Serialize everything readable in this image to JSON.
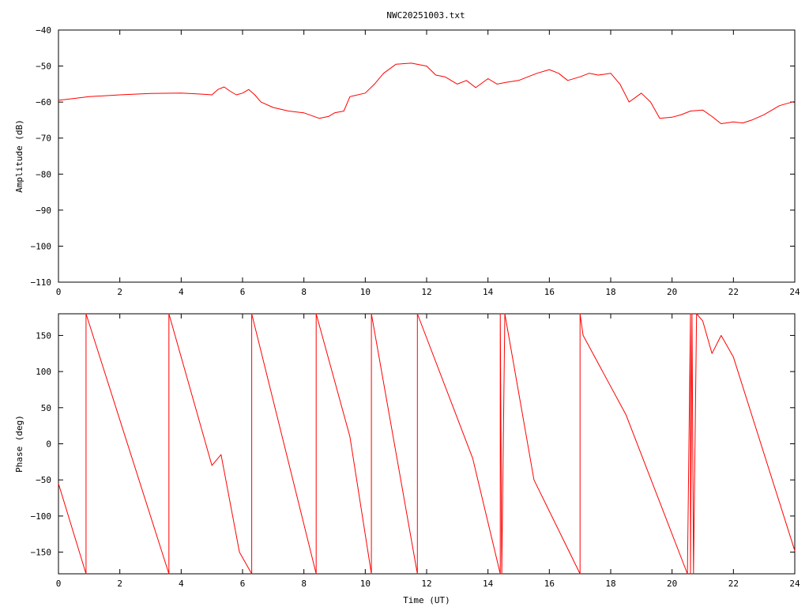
{
  "title": "NWC20251003.txt",
  "colors": {
    "series": "#ff0000",
    "axes": "#000000",
    "background": "#ffffff"
  },
  "chart_data": [
    {
      "type": "line",
      "title": "NWC20251003.txt",
      "xlabel": "",
      "ylabel": "Amplitude (dB)",
      "xlim": [
        0,
        24
      ],
      "ylim": [
        -110,
        -40
      ],
      "xticks": [
        "0",
        "2",
        "4",
        "6",
        "8",
        "10",
        "12",
        "14",
        "16",
        "18",
        "20",
        "22",
        "24"
      ],
      "yticks": [
        "-40",
        "-50",
        "-60",
        "-70",
        "-80",
        "-90",
        "-100",
        "-110"
      ],
      "grid": false,
      "series": [
        {
          "x": [
            0,
            0.5,
            1,
            2,
            3,
            4,
            4.5,
            5,
            5.2,
            5.4,
            5.6,
            5.8,
            6.0,
            6.2,
            6.4,
            6.6,
            7,
            7.5,
            8,
            8.5,
            8.8,
            9,
            9.3,
            9.5,
            9.6,
            10,
            10.3,
            10.6,
            11,
            11.5,
            12,
            12.3,
            12.6,
            13,
            13.3,
            13.6,
            14,
            14.3,
            14.6,
            15,
            15.3,
            15.6,
            16,
            16.3,
            16.6,
            17,
            17.3,
            17.6,
            18,
            18.3,
            18.6,
            19,
            19.3,
            19.6,
            20,
            20.3,
            20.6,
            21,
            21.3,
            21.6,
            22,
            22.3,
            22.6,
            23,
            23.5,
            24
          ],
          "y": [
            -59.5,
            -59,
            -58.5,
            -58,
            -57.6,
            -57.5,
            -57.7,
            -58,
            -56.5,
            -55.8,
            -57,
            -58,
            -57.5,
            -56.5,
            -58,
            -60,
            -61.5,
            -62.5,
            -63,
            -64.5,
            -64,
            -63,
            -62.5,
            -58.5,
            -58.3,
            -57.5,
            -55,
            -52,
            -49.5,
            -49.2,
            -50,
            -52.5,
            -53,
            -55,
            -54,
            -56,
            -53.5,
            -55,
            -54.5,
            -54,
            -53,
            -52,
            -51,
            -52,
            -54,
            -53,
            -52,
            -52.5,
            -52,
            -55,
            -60,
            -57.5,
            -60,
            -64.5,
            -64.2,
            -63.5,
            -62.5,
            -62.2,
            -64,
            -66,
            -65.5,
            -65.8,
            -65,
            -63.5,
            -61,
            -59.8
          ]
        }
      ]
    },
    {
      "type": "line",
      "title": "",
      "xlabel": "Time (UT)",
      "ylabel": "Phase (deg)",
      "xlim": [
        0,
        24
      ],
      "ylim": [
        -180,
        180
      ],
      "xticks": [
        "0",
        "2",
        "4",
        "6",
        "8",
        "10",
        "12",
        "14",
        "16",
        "18",
        "20",
        "22",
        "24"
      ],
      "yticks": [
        "150",
        "100",
        "50",
        "0",
        "-50",
        "-100",
        "-150"
      ],
      "ytick_values": [
        150,
        100,
        50,
        0,
        -50,
        -100,
        -150
      ],
      "grid": false,
      "series": [
        {
          "x": [
            0,
            0.9,
            0.9,
            3.6,
            3.6,
            5.0,
            5.3,
            5.9,
            6.3,
            6.3,
            8.4,
            8.4,
            9.5,
            10.2,
            10.2,
            11.7,
            11.7,
            13.5,
            14.4,
            14.4,
            14.45,
            14.55,
            15.5,
            17.0,
            17.0,
            17.1,
            18.5,
            20.5,
            20.6,
            20.6,
            20.65,
            20.7,
            20.8,
            20.8,
            21.0,
            21.3,
            21.6,
            22,
            24
          ],
          "y": [
            -55,
            -180,
            180,
            -180,
            180,
            -30,
            -15,
            -150,
            -180,
            180,
            -180,
            180,
            10,
            -180,
            180,
            -180,
            180,
            -20,
            -180,
            180,
            -180,
            180,
            -50,
            -180,
            180,
            150,
            40,
            -180,
            180,
            -180,
            180,
            -180,
            180,
            180,
            170,
            125,
            150,
            120,
            -148
          ]
        }
      ]
    }
  ]
}
